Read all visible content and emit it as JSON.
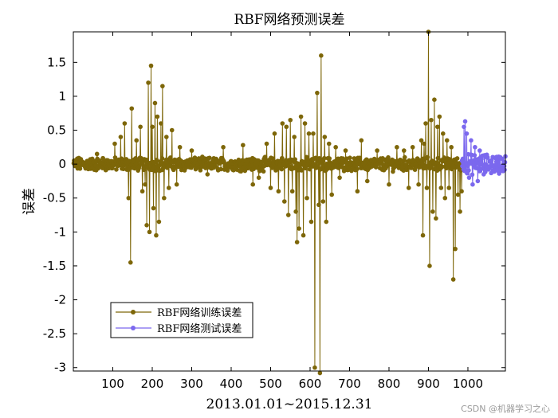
{
  "watermark": "CSDN @机器学习之心",
  "colors": {
    "train": "#7d6608",
    "test": "#7b68ee",
    "axes": "#000000"
  },
  "chart_data": {
    "type": "line",
    "title": "RBF网络预测误差",
    "xlabel": "2013.01.01~2015.12.31",
    "ylabel": "误差",
    "xlim": [
      0,
      1095
    ],
    "ylim": [
      -3.05,
      1.95
    ],
    "xticks": [
      100,
      200,
      300,
      400,
      500,
      600,
      700,
      800,
      900,
      1000
    ],
    "xtick_labels": [
      "100",
      "200",
      "300",
      "400",
      "500",
      "600",
      "700",
      "800",
      "900",
      "1000"
    ],
    "yticks": [
      1.5,
      1,
      0.5,
      0,
      -0.5,
      -1,
      -1.5,
      -2,
      -2.5,
      -3
    ],
    "ytick_labels": [
      "1.5",
      "1",
      "0.5",
      "0",
      "-0.5",
      "-1",
      "-1.5",
      "-2",
      "-2.5",
      "-3"
    ],
    "legend_position": "lower-left",
    "series": [
      {
        "name": "RBF网络训练误差",
        "color": "#7d6608",
        "marker": "o",
        "x_start": 1,
        "x_end": 985,
        "noise_amplitude": 0.08,
        "spikes": [
          [
            60,
            0.15
          ],
          [
            105,
            0.3
          ],
          [
            120,
            0.4
          ],
          [
            130,
            0.6
          ],
          [
            140,
            -0.5
          ],
          [
            145,
            -1.45
          ],
          [
            148,
            0.82
          ],
          [
            160,
            0.35
          ],
          [
            170,
            0.55
          ],
          [
            175,
            -0.4
          ],
          [
            182,
            -0.3
          ],
          [
            186,
            -0.9
          ],
          [
            190,
            1.2
          ],
          [
            193,
            -1.0
          ],
          [
            197,
            1.45
          ],
          [
            200,
            0.55
          ],
          [
            203,
            -0.65
          ],
          [
            207,
            0.9
          ],
          [
            210,
            -1.05
          ],
          [
            213,
            0.7
          ],
          [
            217,
            -0.85
          ],
          [
            222,
            0.6
          ],
          [
            226,
            1.15
          ],
          [
            230,
            -0.5
          ],
          [
            236,
            0.4
          ],
          [
            242,
            -0.35
          ],
          [
            250,
            0.5
          ],
          [
            262,
            -0.3
          ],
          [
            270,
            0.25
          ],
          [
            300,
            0.2
          ],
          [
            340,
            -0.15
          ],
          [
            380,
            0.25
          ],
          [
            430,
            0.28
          ],
          [
            455,
            -0.3
          ],
          [
            470,
            -0.2
          ],
          [
            490,
            0.3
          ],
          [
            500,
            -0.35
          ],
          [
            510,
            0.45
          ],
          [
            520,
            -0.4
          ],
          [
            530,
            0.6
          ],
          [
            535,
            -0.55
          ],
          [
            540,
            0.55
          ],
          [
            545,
            -0.75
          ],
          [
            550,
            0.65
          ],
          [
            555,
            -0.4
          ],
          [
            560,
            0.4
          ],
          [
            564,
            -0.7
          ],
          [
            567,
            -1.15
          ],
          [
            572,
            -0.95
          ],
          [
            577,
            0.7
          ],
          [
            583,
            -1.05
          ],
          [
            587,
            0.6
          ],
          [
            592,
            -0.5
          ],
          [
            597,
            0.45
          ],
          [
            603,
            -0.85
          ],
          [
            608,
            0.45
          ],
          [
            612,
            -3.0
          ],
          [
            618,
            1.05
          ],
          [
            622,
            -0.6
          ],
          [
            625,
            -3.08
          ],
          [
            628,
            1.6
          ],
          [
            633,
            -0.55
          ],
          [
            637,
            0.4
          ],
          [
            641,
            -0.85
          ],
          [
            648,
            0.3
          ],
          [
            655,
            -0.45
          ],
          [
            665,
            0.25
          ],
          [
            675,
            -0.2
          ],
          [
            690,
            0.2
          ],
          [
            720,
            -0.4
          ],
          [
            730,
            0.35
          ],
          [
            745,
            -0.25
          ],
          [
            770,
            0.2
          ],
          [
            800,
            -0.3
          ],
          [
            820,
            0.25
          ],
          [
            838,
            0.2
          ],
          [
            850,
            -0.35
          ],
          [
            860,
            0.25
          ],
          [
            875,
            -0.3
          ],
          [
            882,
            0.35
          ],
          [
            886,
            -1.05
          ],
          [
            889,
            0.3
          ],
          [
            893,
            0.6
          ],
          [
            896,
            -0.35
          ],
          [
            900,
            1.95
          ],
          [
            903,
            -1.5
          ],
          [
            907,
            0.65
          ],
          [
            911,
            -0.7
          ],
          [
            915,
            0.95
          ],
          [
            919,
            -0.8
          ],
          [
            923,
            0.55
          ],
          [
            928,
            0.7
          ],
          [
            932,
            -0.35
          ],
          [
            937,
            0.45
          ],
          [
            942,
            -0.5
          ],
          [
            947,
            0.35
          ],
          [
            952,
            -0.35
          ],
          [
            958,
            0.25
          ],
          [
            963,
            -1.7
          ],
          [
            968,
            -1.25
          ],
          [
            975,
            -0.45
          ],
          [
            980,
            -0.7
          ],
          [
            984,
            -0.4
          ]
        ]
      },
      {
        "name": "RBF网络测试误差",
        "color": "#7b68ee",
        "marker": "o",
        "x_start": 986,
        "x_end": 1095,
        "noise_amplitude": 0.12,
        "spikes": [
          [
            990,
            0.55
          ],
          [
            993,
            0.63
          ],
          [
            997,
            0.45
          ],
          [
            1003,
            -0.2
          ],
          [
            1008,
            0.35
          ],
          [
            1012,
            -0.3
          ],
          [
            1018,
            0.25
          ],
          [
            1025,
            -0.25
          ],
          [
            1030,
            0.2
          ],
          [
            1040,
            -0.15
          ],
          [
            1050,
            0.1
          ],
          [
            1065,
            -0.1
          ],
          [
            1080,
            0.08
          ]
        ]
      }
    ]
  }
}
